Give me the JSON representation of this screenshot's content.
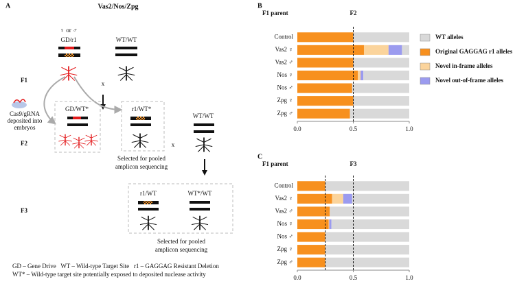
{
  "panel_a": {
    "label": "A",
    "title": "Vas2/Nos/Zpg",
    "f1": {
      "generation": "F1",
      "sex_note": "♀ or ♂",
      "parent1": "GD/r1",
      "parent2": "WT/WT",
      "cross": "x"
    },
    "injection": [
      "Cas9/gRNA",
      "deposited into",
      "embryos"
    ],
    "f2": {
      "generation": "F2",
      "box1": "GD/WT*",
      "box2": "r1/WT*",
      "mate": "WT/WT",
      "cross": "x",
      "selected": [
        "Selected for pooled",
        "amplicon sequencing"
      ]
    },
    "f3": {
      "generation": "F3",
      "left": "r1/WT",
      "right": "WT*/WT",
      "selected": [
        "Selected for pooled",
        "amplicon sequencing"
      ]
    },
    "footer": [
      "GD – Gene Drive   WT – Wild-type Target Site   r1 – GAGGAG Resistant Deletion",
      "WT* – Wild-type target site potentially exposed to deposited nuclease activity"
    ]
  },
  "chart_data": [
    {
      "type": "stacked-bar",
      "panel": "B",
      "title": "F2",
      "y_label": "F1 parent",
      "categories": [
        "Control",
        "Vas2 ♀",
        "Vas2 ♂",
        "Nos ♀",
        "Nos ♂",
        "Zpg ♀",
        "Zpg ♂"
      ],
      "series": [
        {
          "name": "Original GAGGAG r1 alleles",
          "color": "#f7901e",
          "values": [
            0.5,
            0.595,
            0.5,
            0.54,
            0.49,
            0.5,
            0.47
          ]
        },
        {
          "name": "Novel in-frame alleles",
          "color": "#fbd49c",
          "values": [
            0,
            0.22,
            0,
            0.025,
            0,
            0,
            0
          ]
        },
        {
          "name": "Novel out-of-frame alleles",
          "color": "#9b9bef",
          "values": [
            0,
            0.12,
            0,
            0.025,
            0,
            0,
            0
          ]
        },
        {
          "name": "WT alleles",
          "color": "#d9d9d9",
          "values": [
            0.5,
            0.065,
            0.5,
            0.41,
            0.51,
            0.5,
            0.53
          ]
        }
      ],
      "legend_order": [
        3,
        0,
        1,
        2
      ],
      "reference_lines": [
        0.5
      ],
      "xlim": [
        0,
        1
      ],
      "xticks": [
        {
          "value": 0,
          "label": "0.0"
        },
        0.5,
        {
          "value": 1,
          "label": "1.0"
        }
      ]
    },
    {
      "type": "stacked-bar",
      "panel": "C",
      "title": "F3",
      "y_label": "F1 parent",
      "categories": [
        "Control",
        "Vas2 ♀",
        "Vas2 ♂",
        "Nos ♀",
        "Nos ♂",
        "Zpg ♀",
        "Zpg ♂"
      ],
      "series": [
        {
          "color": "#f7901e",
          "values": [
            0.25,
            0.31,
            0.29,
            0.28,
            0.25,
            0.25,
            0.25
          ]
        },
        {
          "color": "#fbd49c",
          "values": [
            0,
            0.1,
            0,
            0.005,
            0,
            0,
            0
          ]
        },
        {
          "color": "#9b9bef",
          "values": [
            0,
            0.08,
            0,
            0.02,
            0,
            0,
            0
          ]
        },
        {
          "color": "#d9d9d9",
          "values": [
            0.75,
            0.51,
            0.71,
            0.695,
            0.75,
            0.75,
            0.75
          ]
        }
      ],
      "reference_lines": [
        0.25,
        0.5
      ],
      "xlim": [
        0,
        1
      ],
      "xticks": [
        {
          "value": 0,
          "label": "0.0"
        },
        0.5,
        {
          "value": 1,
          "label": "1.0"
        }
      ]
    }
  ]
}
